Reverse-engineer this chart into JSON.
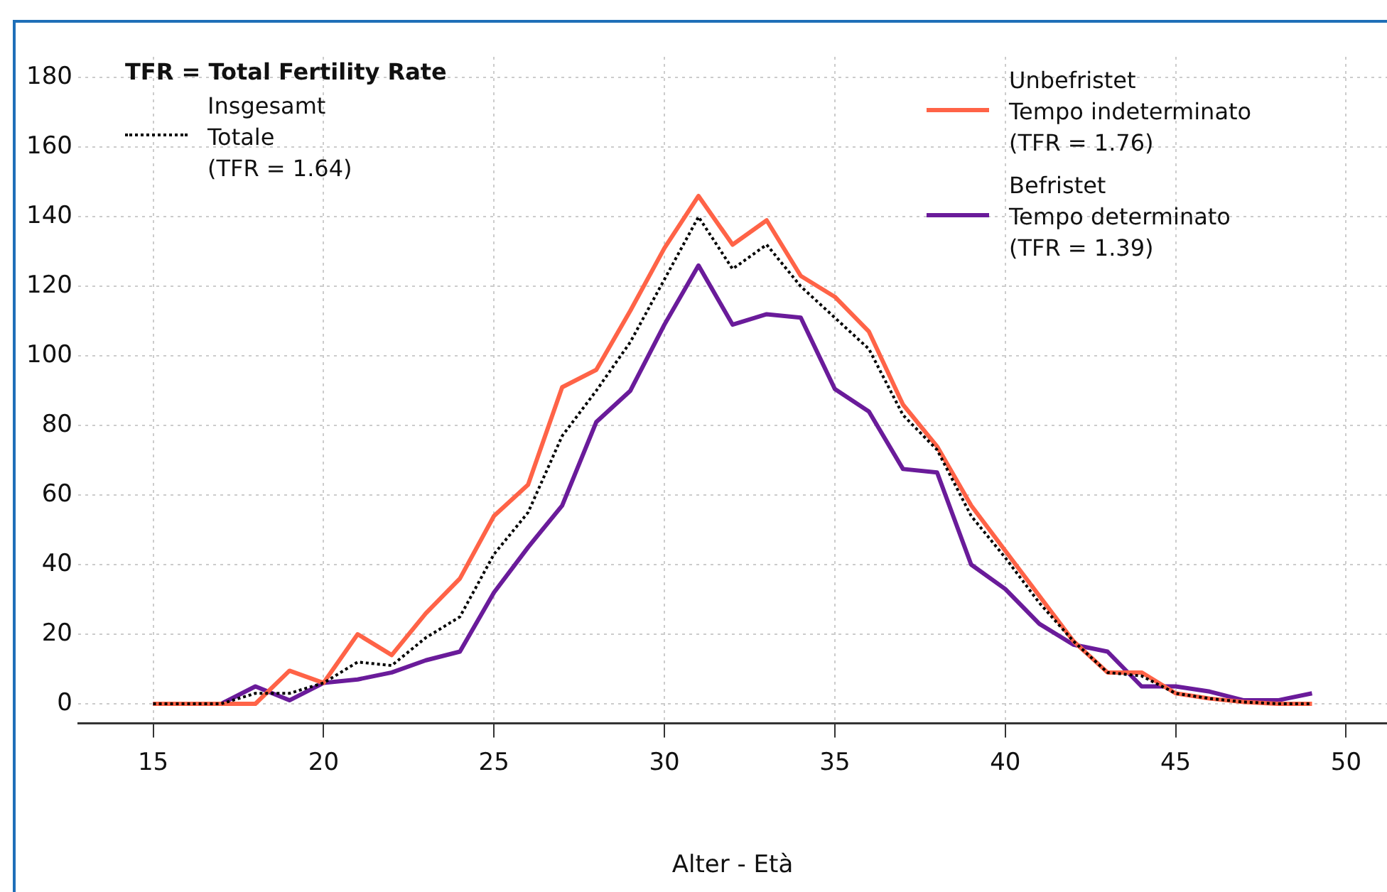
{
  "chart_data": {
    "type": "line",
    "xlabel": "Alter - Età",
    "legend_title": "TFR = Total Fertility Rate",
    "legend": "top",
    "grid": true,
    "x": [
      15,
      16,
      17,
      18,
      19,
      20,
      21,
      22,
      23,
      24,
      25,
      26,
      27,
      28,
      29,
      30,
      31,
      32,
      33,
      34,
      35,
      36,
      37,
      38,
      39,
      40,
      41,
      42,
      43,
      44,
      45,
      46,
      47,
      48,
      49
    ],
    "xlim": [
      12.8,
      51.2
    ],
    "xticks": [
      15,
      20,
      25,
      30,
      35,
      40,
      45,
      50
    ],
    "ylim": [
      -5.6,
      186
    ],
    "yticks": [
      0,
      20,
      40,
      60,
      80,
      100,
      120,
      140,
      160,
      180
    ],
    "series": [
      {
        "name": "Insgesamt\nTotale\n(TFR = 1.64)",
        "color": "#000000",
        "line_style": "dotted",
        "values": [
          0,
          0,
          0,
          3,
          3,
          6,
          12,
          11,
          19,
          25,
          43,
          55,
          77,
          90,
          104,
          122,
          140,
          125,
          132,
          120,
          111,
          102,
          83,
          73,
          54,
          42,
          29,
          18,
          9,
          8,
          3,
          1.5,
          0.5,
          0,
          0
        ]
      },
      {
        "name": "Unbefristet\nTempo indeterminato\n(TFR = 1.76)",
        "color": "#ff6347",
        "line_style": "solid",
        "values": [
          0,
          0,
          0,
          0,
          9.5,
          6,
          20,
          14,
          26,
          36,
          54,
          63,
          91,
          96,
          113,
          131,
          146,
          132,
          139,
          123,
          117,
          107,
          86,
          74,
          57,
          44,
          31,
          18,
          9,
          9,
          3,
          1.5,
          0.5,
          0,
          0
        ]
      },
      {
        "name": "Befristet\nTempo determinato\n(TFR = 1.39)",
        "color": "#6a1b9a",
        "line_style": "solid",
        "values": [
          0,
          0,
          0,
          5,
          1,
          6,
          7,
          9,
          12.5,
          15,
          32,
          45,
          57,
          81,
          90,
          109,
          126,
          109,
          112,
          111,
          90.5,
          84,
          67.5,
          66.5,
          40,
          33,
          23,
          17,
          15,
          5,
          5,
          3.5,
          1,
          1,
          3
        ]
      }
    ]
  }
}
